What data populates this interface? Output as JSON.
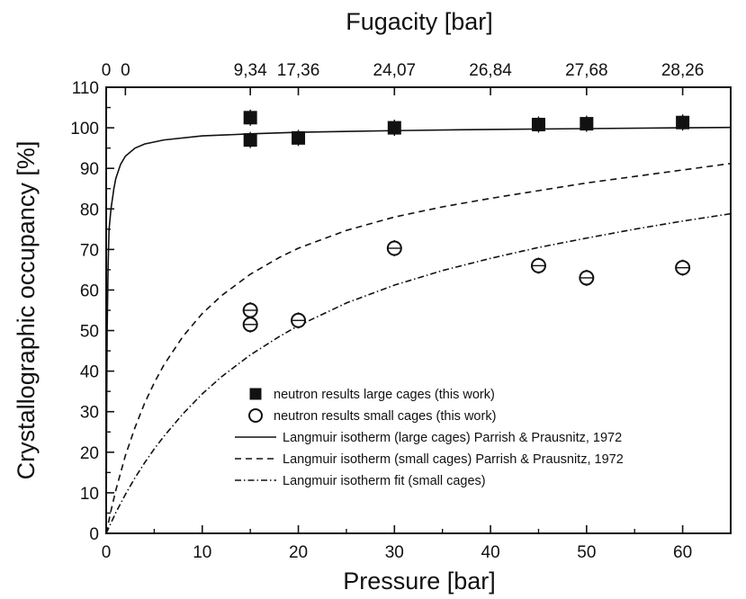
{
  "chart_data": {
    "type": "scatter",
    "xlabel": "Pressure [bar]",
    "ylabel": "Crystallographic occupancy [%]",
    "top_xlabel": "Fugacity [bar]",
    "xlim": [
      0,
      65
    ],
    "ylim": [
      0,
      110
    ],
    "x_ticks": [
      0,
      10,
      20,
      30,
      40,
      50,
      60
    ],
    "y_ticks": [
      0,
      10,
      20,
      30,
      40,
      50,
      60,
      70,
      80,
      90,
      100,
      110
    ],
    "top_ticks": [
      {
        "pressure": 0,
        "label": "0"
      },
      {
        "pressure": 2,
        "label": "0"
      },
      {
        "pressure": 15,
        "label": "9,34"
      },
      {
        "pressure": 20,
        "label": "17,36"
      },
      {
        "pressure": 30,
        "label": "24,07"
      },
      {
        "pressure": 40,
        "label": "26,84"
      },
      {
        "pressure": 50,
        "label": "27,68"
      },
      {
        "pressure": 60,
        "label": "28,26"
      }
    ],
    "series": [
      {
        "name": "neutron results large cages (this work)",
        "kind": "points",
        "marker": "filled-square",
        "points": [
          {
            "x": 15,
            "y": 102.5
          },
          {
            "x": 15,
            "y": 97
          },
          {
            "x": 20,
            "y": 97.5
          },
          {
            "x": 30,
            "y": 100
          },
          {
            "x": 45,
            "y": 100.8
          },
          {
            "x": 50,
            "y": 101
          },
          {
            "x": 60,
            "y": 101.3
          }
        ]
      },
      {
        "name": "neutron results small cages (this work)",
        "kind": "points",
        "marker": "open-circle",
        "points": [
          {
            "x": 15,
            "y": 55
          },
          {
            "x": 15,
            "y": 51.5
          },
          {
            "x": 20,
            "y": 52.5
          },
          {
            "x": 30,
            "y": 70.3
          },
          {
            "x": 45,
            "y": 66
          },
          {
            "x": 50,
            "y": 63
          },
          {
            "x": 60,
            "y": 65.5
          }
        ]
      },
      {
        "name": "Langmuir isotherm (large cages) Parrish & Prausnitz, 1972",
        "kind": "line",
        "dash": "solid",
        "points": [
          {
            "x": 0,
            "y": 0
          },
          {
            "x": 0.05,
            "y": 30
          },
          {
            "x": 0.1,
            "y": 50
          },
          {
            "x": 0.2,
            "y": 66
          },
          {
            "x": 0.3,
            "y": 75
          },
          {
            "x": 0.5,
            "y": 80
          },
          {
            "x": 0.8,
            "y": 85
          },
          {
            "x": 1,
            "y": 87.5
          },
          {
            "x": 1.5,
            "y": 91
          },
          {
            "x": 2,
            "y": 93
          },
          {
            "x": 3,
            "y": 95
          },
          {
            "x": 4,
            "y": 96
          },
          {
            "x": 6,
            "y": 97
          },
          {
            "x": 10,
            "y": 98
          },
          {
            "x": 15,
            "y": 98.5
          },
          {
            "x": 20,
            "y": 98.9
          },
          {
            "x": 30,
            "y": 99.3
          },
          {
            "x": 40,
            "y": 99.6
          },
          {
            "x": 50,
            "y": 99.8
          },
          {
            "x": 60,
            "y": 100
          },
          {
            "x": 65,
            "y": 100.1
          }
        ]
      },
      {
        "name": "Langmuir isotherm (small cages) Parrish & Prausnitz, 1972",
        "kind": "line",
        "dash": "dashed",
        "points": [
          {
            "x": 0,
            "y": 0
          },
          {
            "x": 0.5,
            "y": 5.6
          },
          {
            "x": 1,
            "y": 10.6
          },
          {
            "x": 2,
            "y": 19.2
          },
          {
            "x": 3,
            "y": 26.1
          },
          {
            "x": 4,
            "y": 32.1
          },
          {
            "x": 5,
            "y": 37.1
          },
          {
            "x": 6,
            "y": 41.5
          },
          {
            "x": 8,
            "y": 48.6
          },
          {
            "x": 10,
            "y": 54.2
          },
          {
            "x": 12,
            "y": 58.6
          },
          {
            "x": 15,
            "y": 63.9
          },
          {
            "x": 18,
            "y": 68.0
          },
          {
            "x": 20,
            "y": 70.3
          },
          {
            "x": 25,
            "y": 74.7
          },
          {
            "x": 30,
            "y": 78.0
          },
          {
            "x": 35,
            "y": 80.5
          },
          {
            "x": 40,
            "y": 82.6
          },
          {
            "x": 45,
            "y": 84.5
          },
          {
            "x": 50,
            "y": 86.4
          },
          {
            "x": 55,
            "y": 88.0
          },
          {
            "x": 60,
            "y": 89.6
          },
          {
            "x": 65,
            "y": 91.2
          }
        ]
      },
      {
        "name": "Langmuir isotherm fit (small cages)",
        "kind": "line",
        "dash": "dash-dot",
        "points": [
          {
            "x": 0,
            "y": 0
          },
          {
            "x": 1,
            "y": 5.1
          },
          {
            "x": 2,
            "y": 9.6
          },
          {
            "x": 3,
            "y": 13.7
          },
          {
            "x": 4,
            "y": 17.4
          },
          {
            "x": 5,
            "y": 20.8
          },
          {
            "x": 6,
            "y": 23.9
          },
          {
            "x": 8,
            "y": 29.5
          },
          {
            "x": 10,
            "y": 34.4
          },
          {
            "x": 12,
            "y": 38.6
          },
          {
            "x": 15,
            "y": 44.0
          },
          {
            "x": 18,
            "y": 48.5
          },
          {
            "x": 20,
            "y": 51.2
          },
          {
            "x": 25,
            "y": 56.8
          },
          {
            "x": 30,
            "y": 61.2
          },
          {
            "x": 35,
            "y": 64.8
          },
          {
            "x": 40,
            "y": 67.8
          },
          {
            "x": 45,
            "y": 70.5
          },
          {
            "x": 50,
            "y": 72.8
          },
          {
            "x": 55,
            "y": 75.0
          },
          {
            "x": 60,
            "y": 77.0
          },
          {
            "x": 65,
            "y": 78.8
          }
        ]
      }
    ],
    "legend": {
      "placement": "lower-center",
      "entries": [
        {
          "symbol": "filled-square",
          "label": "neutron results large cages (this work)"
        },
        {
          "symbol": "open-circle",
          "label": "neutron results small cages (this work)"
        },
        {
          "symbol": "solid",
          "label": "Langmuir isotherm (large cages) Parrish & Prausnitz, 1972"
        },
        {
          "symbol": "dashed",
          "label": "Langmuir isotherm (small cages) Parrish & Prausnitz, 1972"
        },
        {
          "symbol": "dash-dot",
          "label": "Langmuir isotherm fit (small cages)"
        }
      ]
    },
    "grid": false,
    "colors": {
      "ink": "#111111",
      "background": "#ffffff"
    }
  }
}
